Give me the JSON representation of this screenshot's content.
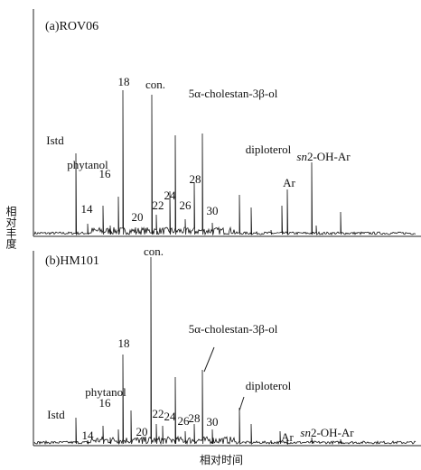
{
  "figure": {
    "y_label": "相对丰度",
    "x_label": "相对时间",
    "panels": [
      {
        "label": "(a)ROV06",
        "peaks": [
          "18",
          "con.",
          "5α-cholestan-3β-ol",
          "Istd",
          "phytanol",
          "16",
          "14",
          "24",
          "22",
          "20",
          "28",
          "26",
          "30",
          "diploterol",
          "Ar"
        ],
        "sn_label": {
          "italic": "sn",
          "rest": "2-OH-Ar"
        }
      },
      {
        "label": "(b)HM101",
        "peaks": [
          "18",
          "con.",
          "5α-cholestan-3β-ol",
          "Istd",
          "phytanol",
          "16",
          "14",
          "24",
          "22",
          "20",
          "28",
          "26",
          "30",
          "diploterol",
          "Ar"
        ],
        "sn_label": {
          "italic": "sn",
          "rest": "2-OH-Ar"
        }
      }
    ]
  }
}
